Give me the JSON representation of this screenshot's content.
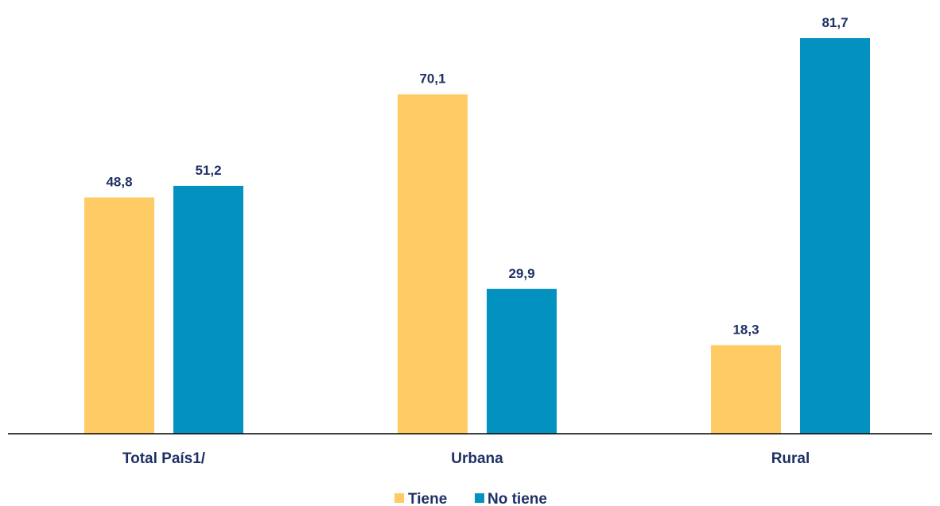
{
  "chart_data": {
    "type": "bar",
    "title": "",
    "xlabel": "",
    "ylabel": "",
    "categories": [
      "Total País1/",
      "Urbana",
      "Rural"
    ],
    "series": [
      {
        "name": "Tiene",
        "color": "#FECB65",
        "values": [
          48.8,
          70.1,
          18.3
        ],
        "labels": [
          "48,8",
          "70,1",
          "18,3"
        ]
      },
      {
        "name": "No tiene",
        "color": "#0391C0",
        "values": [
          51.2,
          29.9,
          81.7
        ],
        "labels": [
          "51,2",
          "29,9",
          "81,7"
        ]
      }
    ],
    "ylim": [
      0,
      100
    ],
    "grid": false,
    "legend_position": "bottom",
    "label_color": "#1F3064",
    "axis_color": "#000000"
  }
}
